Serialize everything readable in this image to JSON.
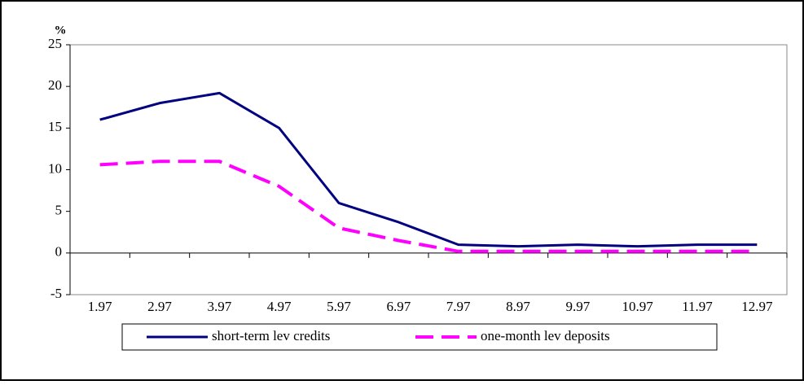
{
  "chart_data": {
    "type": "line",
    "y_label": "%",
    "categories": [
      "1.97",
      "2.97",
      "3.97",
      "4.97",
      "5.97",
      "6.97",
      "7.97",
      "8.97",
      "9.97",
      "10.97",
      "11.97",
      "12.97"
    ],
    "series": [
      {
        "name": "short-term lev credits",
        "color": "#000080",
        "dash": false,
        "values": [
          16,
          18,
          19.2,
          15,
          6,
          3.7,
          1,
          0.8,
          1,
          0.8,
          1,
          1
        ]
      },
      {
        "name": "one-month lev deposits",
        "color": "#ff00ff",
        "dash": true,
        "values": [
          10.6,
          11,
          11,
          8,
          3,
          1.5,
          0.2,
          0.2,
          0.2,
          0.2,
          0.2,
          0.2
        ]
      }
    ],
    "ylim": [
      -5,
      25
    ],
    "yticks": [
      -5,
      0,
      5,
      10,
      15,
      20,
      25
    ],
    "grid": false,
    "legend": "bottom"
  }
}
